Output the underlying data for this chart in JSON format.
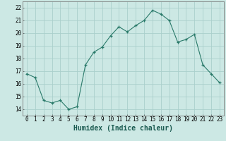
{
  "x": [
    0,
    1,
    2,
    3,
    4,
    5,
    6,
    7,
    8,
    9,
    10,
    11,
    12,
    13,
    14,
    15,
    16,
    17,
    18,
    19,
    20,
    21,
    22,
    23
  ],
  "y": [
    16.8,
    16.5,
    14.7,
    14.5,
    14.7,
    14.0,
    14.2,
    17.5,
    18.5,
    18.9,
    19.8,
    20.5,
    20.1,
    20.6,
    21.0,
    21.8,
    21.5,
    21.0,
    19.3,
    19.5,
    19.9,
    17.5,
    16.8,
    16.1
  ],
  "xlabel": "Humidex (Indice chaleur)",
  "xlim": [
    -0.5,
    23.5
  ],
  "ylim": [
    13.5,
    22.5
  ],
  "yticks": [
    14,
    15,
    16,
    17,
    18,
    19,
    20,
    21,
    22
  ],
  "xticks": [
    0,
    1,
    2,
    3,
    4,
    5,
    6,
    7,
    8,
    9,
    10,
    11,
    12,
    13,
    14,
    15,
    16,
    17,
    18,
    19,
    20,
    21,
    22,
    23
  ],
  "line_color": "#2a7a6a",
  "marker": "+",
  "bg_color": "#cce8e4",
  "grid_color": "#aacfcc",
  "tick_label_fontsize": 5.5,
  "xlabel_fontsize": 7,
  "xlabel_bold": true
}
